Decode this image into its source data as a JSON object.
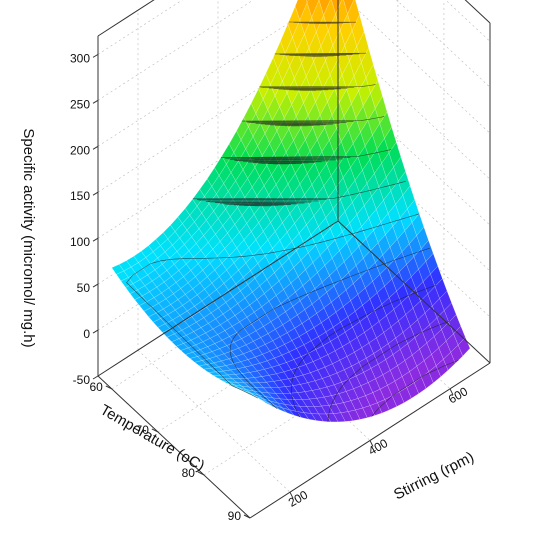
{
  "chart_data": {
    "type": "surface3d",
    "title": "",
    "x_axis": {
      "label": "Stirring (rpm)",
      "ticks": [
        200,
        400,
        600
      ],
      "range": [
        100,
        700
      ]
    },
    "y_axis": {
      "label": "Temperature (oC)",
      "ticks": [
        60,
        70,
        80,
        90
      ],
      "range": [
        57,
        90
      ]
    },
    "z_axis": {
      "label": "Specific activity (micromol/ mg.h)",
      "ticks": [
        -50,
        0,
        50,
        100,
        150,
        200,
        250,
        300
      ],
      "range": [
        -50,
        320
      ]
    },
    "grid": true,
    "colormap": [
      "#8a2be2",
      "#3030ff",
      "#00e0ff",
      "#00dd55",
      "#c8f000",
      "#ffd000",
      "#ff7a00",
      "#e00000"
    ],
    "surface_corners": [
      {
        "stirring": 100,
        "temperature": 60,
        "activity": 82
      },
      {
        "stirring": 650,
        "temperature": 60,
        "activity": 318
      },
      {
        "stirring": 100,
        "temperature": 90,
        "activity": 86
      },
      {
        "stirring": 650,
        "temperature": 90,
        "activity": -20
      }
    ],
    "surface_midpoints": [
      {
        "stirring": 375,
        "temperature": 60,
        "activity": 126
      },
      {
        "stirring": 375,
        "temperature": 90,
        "activity": -20
      },
      {
        "stirring": 100,
        "temperature": 75,
        "activity": 62
      },
      {
        "stirring": 650,
        "temperature": 75,
        "activity": 118
      },
      {
        "stirring": 375,
        "temperature": 75,
        "activity": 58
      }
    ],
    "contour_levels": [
      -25,
      0,
      25,
      50,
      75,
      100,
      125,
      150,
      175,
      200,
      225,
      250,
      275,
      300
    ]
  }
}
